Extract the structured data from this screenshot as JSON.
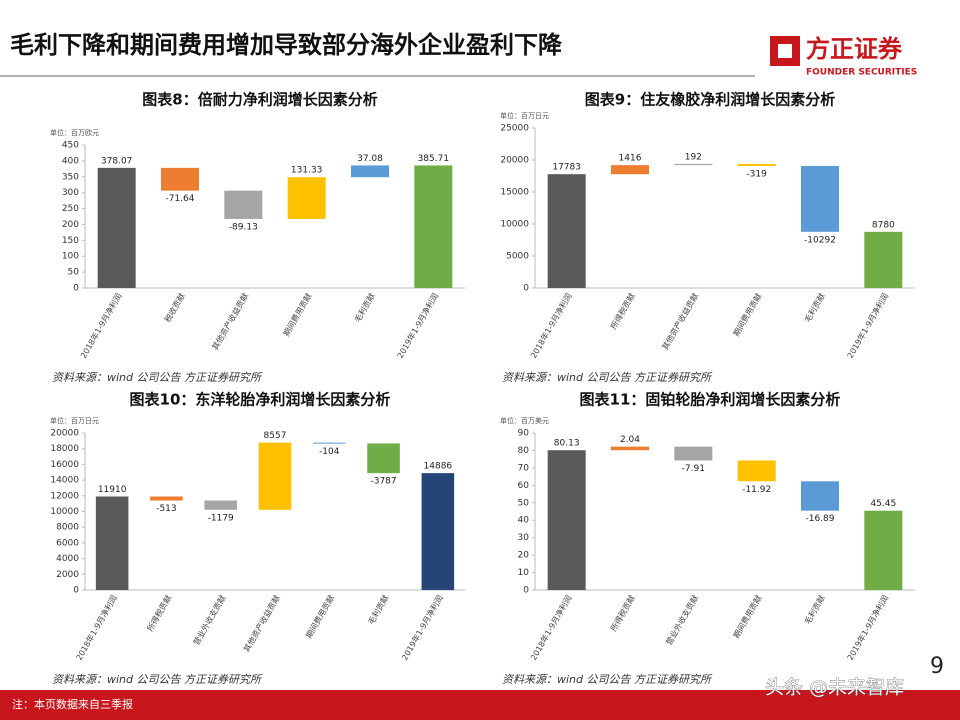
{
  "header": {
    "title": "毛利下降和期间费用增加导致部分海外企业盈利下降",
    "logo_name": "方正证券",
    "logo_en": "FOUNDER SECURITIES"
  },
  "page_number": "9",
  "footer_note": "注：本页数据来自三季报",
  "watermark": "头条 @未来智库",
  "chart_data": [
    {
      "type": "waterfall",
      "title": "图表8：倍耐力净利润增长因素分析",
      "unit": "单位：百万欧元",
      "categories": [
        "2018年1-9月净利润",
        "税收贡献",
        "其他资产收益贡献",
        "期间费用贡献",
        "毛利贡献",
        "2019年1-9月净利润"
      ],
      "values": [
        378.07,
        -71.64,
        -89.13,
        131.33,
        37.08,
        385.71
      ],
      "colors": [
        "#595959",
        "#ed7d31",
        "#a5a5a5",
        "#ffc000",
        "#5b9bd5",
        "#70ad47"
      ],
      "ylim": [
        0,
        450
      ],
      "yticks": [
        0,
        50,
        100,
        150,
        200,
        250,
        300,
        350,
        400,
        450
      ],
      "source": "资料来源：wind 公司公告 方正证券研究所"
    },
    {
      "type": "waterfall",
      "title": "图表9：住友橡胶净利润增长因素分析",
      "unit": "单位：百万日元",
      "categories": [
        "2018年1-9月净利润",
        "所得税贡献",
        "其他资产收益贡献",
        "期间费用贡献",
        "毛利贡献",
        "2019年1-9月净利润"
      ],
      "values": [
        17783,
        1416,
        192,
        -319,
        -10292,
        8780
      ],
      "colors": [
        "#595959",
        "#ed7d31",
        "#a5a5a5",
        "#ffc000",
        "#5b9bd5",
        "#70ad47"
      ],
      "ylim": [
        0,
        25000
      ],
      "yticks": [
        0,
        5000,
        10000,
        15000,
        20000,
        25000
      ],
      "source": "资料来源：wind 公司公告 方正证券研究所"
    },
    {
      "type": "waterfall",
      "title": "图表10：东洋轮胎净利润增长因素分析",
      "unit": "单位：百万日元",
      "categories": [
        "2018年1-9月净利润",
        "所得税贡献",
        "营业外收支贡献",
        "其他资产收益贡献",
        "期间费用贡献",
        "毛利贡献",
        "2019年1-9月净利润"
      ],
      "values": [
        11910,
        -513,
        -1179,
        8557,
        -104,
        -3787,
        14886
      ],
      "colors": [
        "#595959",
        "#ed7d31",
        "#a5a5a5",
        "#ffc000",
        "#5b9bd5",
        "#70ad47",
        "#264478"
      ],
      "ylim": [
        0,
        20000
      ],
      "yticks": [
        0,
        2000,
        4000,
        6000,
        8000,
        10000,
        12000,
        14000,
        16000,
        18000,
        20000
      ],
      "source": "资料来源：wind 公司公告 方正证券研究所"
    },
    {
      "type": "waterfall",
      "title": "图表11：固铂轮胎净利润增长因素分析",
      "unit": "单位：百万美元",
      "categories": [
        "2018年1-9月净利润",
        "所得税贡献",
        "营业外收支贡献",
        "期间费用贡献",
        "毛利贡献",
        "2019年1-9月净利润"
      ],
      "values": [
        80.13,
        2.04,
        -7.91,
        -11.92,
        -16.89,
        45.45
      ],
      "colors": [
        "#595959",
        "#ed7d31",
        "#a5a5a5",
        "#ffc000",
        "#5b9bd5",
        "#70ad47"
      ],
      "ylim": [
        0,
        90
      ],
      "yticks": [
        0,
        10,
        20,
        30,
        40,
        50,
        60,
        70,
        80,
        90
      ],
      "source": "资料来源：wind 公司公告 方正证券研究所"
    }
  ]
}
